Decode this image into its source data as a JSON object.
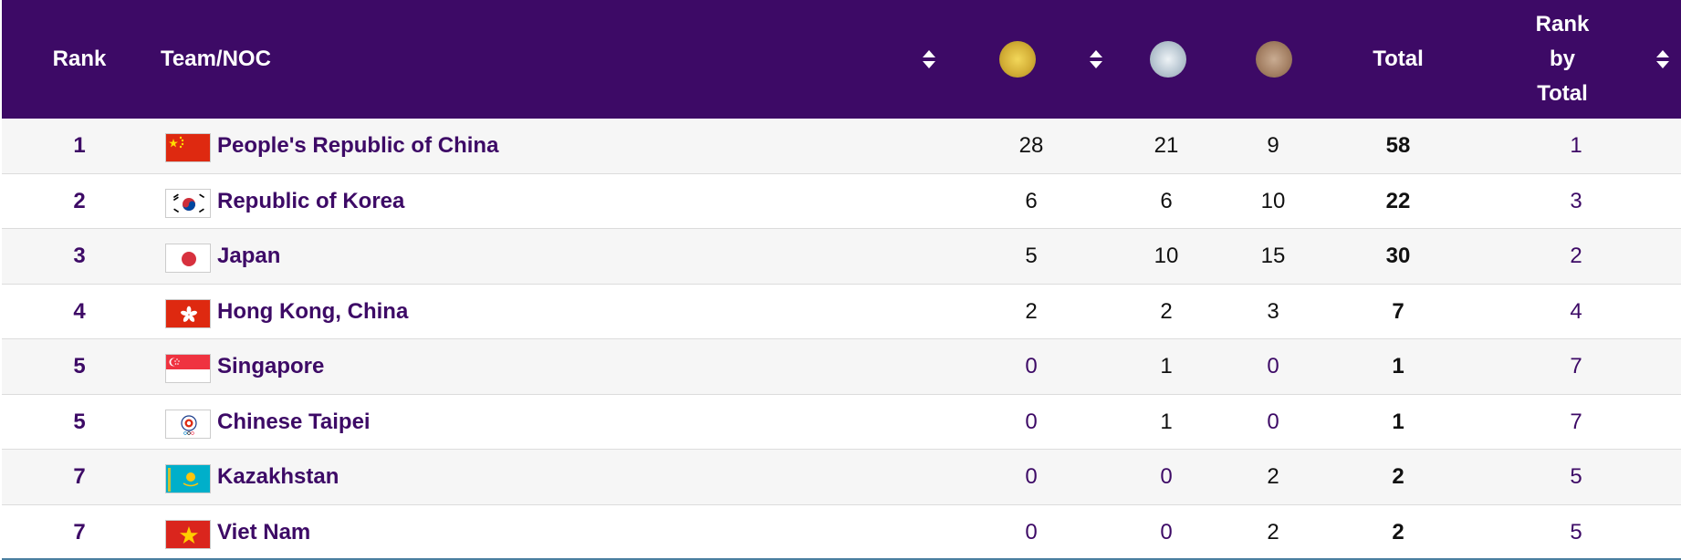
{
  "header": {
    "rank": "Rank",
    "team": "Team/NOC",
    "gold_icon": "gold-medal-icon",
    "silver_icon": "silver-medal-icon",
    "bronze_icon": "bronze-medal-icon",
    "total": "Total",
    "rank_by_total_1": "Rank",
    "rank_by_total_2": "by",
    "rank_by_total_3": "Total"
  },
  "colors": {
    "header_bg": "#3d0a66",
    "accent_text": "#3d0a66",
    "gold": "#d4af37",
    "silver": "#b9c7d2",
    "bronze": "#a68266"
  },
  "rows": [
    {
      "rank": "1",
      "team": "People's Republic of China",
      "flag": "china-flag-icon",
      "gold": "28",
      "silver": "21",
      "bronze": "9",
      "total": "58",
      "rank_by_total": "1"
    },
    {
      "rank": "2",
      "team": "Republic of Korea",
      "flag": "korea-flag-icon",
      "gold": "6",
      "silver": "6",
      "bronze": "10",
      "total": "22",
      "rank_by_total": "3"
    },
    {
      "rank": "3",
      "team": "Japan",
      "flag": "japan-flag-icon",
      "gold": "5",
      "silver": "10",
      "bronze": "15",
      "total": "30",
      "rank_by_total": "2"
    },
    {
      "rank": "4",
      "team": "Hong Kong, China",
      "flag": "hong-kong-flag-icon",
      "gold": "2",
      "silver": "2",
      "bronze": "3",
      "total": "7",
      "rank_by_total": "4"
    },
    {
      "rank": "5",
      "team": "Singapore",
      "flag": "singapore-flag-icon",
      "gold": "0",
      "silver": "1",
      "bronze": "0",
      "total": "1",
      "rank_by_total": "7"
    },
    {
      "rank": "5",
      "team": "Chinese Taipei",
      "flag": "chinese-taipei-flag-icon",
      "gold": "0",
      "silver": "1",
      "bronze": "0",
      "total": "1",
      "rank_by_total": "7"
    },
    {
      "rank": "7",
      "team": "Kazakhstan",
      "flag": "kazakhstan-flag-icon",
      "gold": "0",
      "silver": "0",
      "bronze": "2",
      "total": "2",
      "rank_by_total": "5"
    },
    {
      "rank": "7",
      "team": "Viet Nam",
      "flag": "viet-nam-flag-icon",
      "gold": "0",
      "silver": "0",
      "bronze": "2",
      "total": "2",
      "rank_by_total": "5"
    }
  ]
}
